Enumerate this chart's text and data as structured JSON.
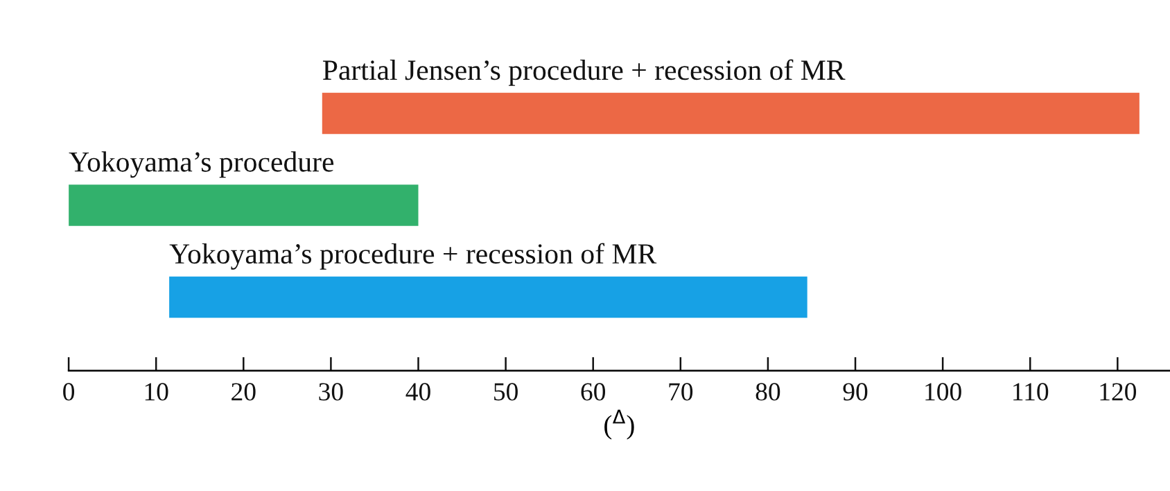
{
  "chart_data": {
    "type": "bar",
    "orientation": "horizontal",
    "categories": [
      "Partial Jensen’s procedure + recession of MR",
      "Yokoyama’s procedure",
      "Yokoyama’s procedure + recession of MR"
    ],
    "base": [
      29,
      0,
      11.5
    ],
    "values": [
      93.5,
      40,
      73
    ],
    "colors": [
      "#ec6845",
      "#32b16c",
      "#17a1e5"
    ],
    "xlabel": "($^{Δ}$)",
    "xlim": [
      0,
      126
    ],
    "xticks": [
      0,
      10,
      20,
      30,
      40,
      50,
      60,
      70,
      80,
      90,
      100,
      110,
      120
    ],
    "grid": false
  }
}
